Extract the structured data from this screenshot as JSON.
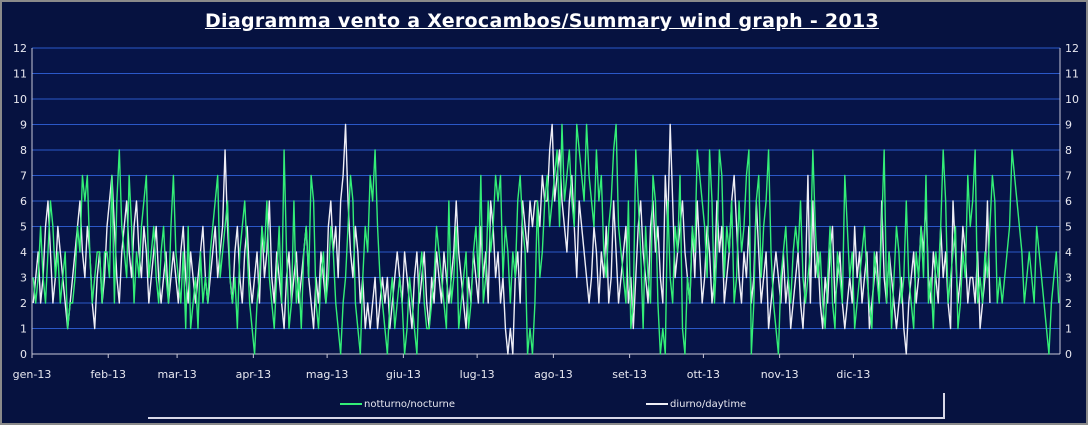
{
  "chart_data": {
    "type": "line",
    "title": "Diagramma vento a Xerocambos/Summary wind graph - 2013",
    "xlabel": "",
    "ylabel": "",
    "ylim": [
      0,
      12
    ],
    "yticks": [
      0,
      1,
      2,
      3,
      4,
      5,
      6,
      7,
      8,
      9,
      10,
      11,
      12
    ],
    "months": [
      "gen-13",
      "feb-13",
      "mar-13",
      "apr-13",
      "mag-13",
      "giu-13",
      "lug-13",
      "ago-13",
      "set-13",
      "ott-13",
      "nov-13",
      "dic-13"
    ],
    "x": "days of 2013 (day 1 = 1 January)",
    "grid": true,
    "legend_position": "bottom",
    "series": [
      {
        "name": "notturno/nocturne",
        "color": "#33ee77",
        "values": [
          3,
          2,
          3,
          5,
          3,
          2,
          4,
          6,
          5,
          3,
          4,
          2,
          3,
          4,
          1,
          2,
          2,
          3,
          5,
          4,
          7,
          6,
          7,
          4,
          2,
          3,
          4,
          4,
          2,
          4,
          4,
          3,
          7,
          2,
          6,
          8,
          5,
          4,
          3,
          7,
          5,
          2,
          4,
          3,
          5,
          6,
          7,
          3,
          4,
          5,
          3,
          2,
          4,
          5,
          3,
          2,
          5,
          7,
          4,
          3,
          2,
          4,
          1,
          5,
          1,
          2,
          3,
          1,
          4,
          2,
          3,
          2,
          4,
          5,
          6,
          7,
          3,
          4,
          5,
          6,
          3,
          2,
          3,
          1,
          4,
          5,
          6,
          4,
          2,
          1,
          0,
          2,
          3,
          5,
          4,
          6,
          3,
          2,
          1,
          3,
          5,
          2,
          8,
          4,
          1,
          2,
          6,
          2,
          3,
          1,
          4,
          5,
          3,
          7,
          6,
          2,
          1,
          3,
          4,
          2,
          3,
          5,
          4,
          2,
          1,
          0,
          2,
          3,
          5,
          7,
          6,
          2,
          1,
          0,
          3,
          5,
          4,
          7,
          6,
          8,
          5,
          3,
          2,
          1,
          0,
          2,
          3,
          1,
          2,
          3,
          2,
          0,
          1,
          3,
          2,
          1,
          0,
          3,
          4,
          2,
          1,
          1,
          2,
          3,
          5,
          4,
          3,
          2,
          1,
          6,
          2,
          3,
          5,
          1,
          2,
          3,
          4,
          1,
          2,
          4,
          5,
          3,
          7,
          2,
          3,
          6,
          4,
          5,
          7,
          6,
          7,
          3,
          5,
          4,
          2,
          4,
          3,
          6,
          7,
          5,
          4,
          0,
          1,
          0,
          2,
          6,
          3,
          4,
          6,
          7,
          5,
          6,
          7,
          8,
          5,
          9,
          6,
          7,
          8,
          6,
          5,
          9,
          8,
          7,
          6,
          9,
          7,
          6,
          5,
          8,
          6,
          7,
          4,
          3,
          5,
          6,
          8,
          9,
          5,
          4,
          3,
          2,
          6,
          1,
          2,
          8,
          6,
          4,
          1,
          5,
          3,
          2,
          7,
          6,
          2,
          0,
          1,
          0,
          6,
          3,
          2,
          5,
          4,
          7,
          1,
          0,
          3,
          2,
          5,
          4,
          8,
          7,
          6,
          5,
          3,
          8,
          6,
          2,
          4,
          8,
          7,
          3,
          5,
          4,
          6,
          2,
          3,
          6,
          4,
          5,
          7,
          8,
          0,
          2,
          6,
          7,
          3,
          5,
          6,
          8,
          4,
          2,
          1,
          0,
          3,
          4,
          5,
          3,
          2,
          4,
          5,
          4,
          6,
          3,
          2,
          3,
          4,
          8,
          5,
          3,
          4,
          2,
          1,
          3,
          5,
          2,
          1,
          4,
          3,
          2,
          7,
          5,
          3,
          4,
          1,
          2,
          3,
          4,
          5,
          3,
          2,
          1,
          4,
          3,
          2,
          5,
          8,
          2,
          4,
          1,
          3,
          5,
          4,
          2,
          3,
          6,
          3,
          2,
          1,
          4,
          3,
          5,
          3,
          7,
          2,
          3,
          1,
          4,
          3,
          5,
          8,
          6,
          2,
          3,
          4,
          5,
          1,
          2,
          4,
          3,
          7,
          5,
          6,
          8,
          2,
          3,
          2,
          4,
          3,
          5,
          7,
          6,
          2,
          3,
          2,
          3,
          4,
          5,
          8,
          7,
          6,
          5,
          4,
          2,
          3,
          4,
          3,
          2,
          5,
          4,
          3,
          2,
          1,
          0,
          2,
          3,
          4,
          2
        ]
      },
      {
        "name": "diurno/daytime",
        "color": "#eeeef6",
        "values": [
          2,
          3,
          4,
          2,
          3,
          5,
          6,
          4,
          2,
          3,
          5,
          4,
          3,
          2,
          1,
          2,
          3,
          4,
          5,
          6,
          4,
          3,
          5,
          4,
          2,
          1,
          3,
          4,
          2,
          3,
          5,
          6,
          7,
          5,
          3,
          2,
          4,
          5,
          6,
          4,
          3,
          5,
          6,
          4,
          3,
          5,
          4,
          2,
          3,
          4,
          5,
          3,
          2,
          3,
          4,
          2,
          3,
          4,
          3,
          2,
          4,
          5,
          3,
          2,
          4,
          3,
          2,
          3,
          4,
          5,
          3,
          2,
          3,
          4,
          5,
          3,
          4,
          5,
          8,
          5,
          3,
          2,
          4,
          5,
          3,
          2,
          4,
          5,
          3,
          2,
          3,
          4,
          2,
          5,
          3,
          4,
          6,
          3,
          2,
          4,
          3,
          2,
          1,
          3,
          4,
          2,
          3,
          4,
          2,
          3,
          4,
          5,
          3,
          2,
          1,
          3,
          2,
          4,
          3,
          2,
          5,
          6,
          4,
          5,
          3,
          6,
          7,
          9,
          6,
          4,
          3,
          5,
          4,
          2,
          3,
          1,
          2,
          1,
          2,
          3,
          1,
          2,
          3,
          2,
          3,
          1,
          2,
          3,
          4,
          3,
          2,
          4,
          3,
          2,
          1,
          3,
          4,
          2,
          3,
          4,
          2,
          1,
          3,
          2,
          4,
          3,
          2,
          4,
          3,
          2,
          3,
          4,
          6,
          4,
          3,
          2,
          1,
          3,
          2,
          4,
          3,
          2,
          5,
          3,
          4,
          2,
          6,
          5,
          3,
          4,
          2,
          3,
          1,
          0,
          1,
          0,
          3,
          4,
          2,
          6,
          5,
          4,
          6,
          5,
          6,
          6,
          5,
          7,
          6,
          6,
          8,
          9,
          6,
          7,
          8,
          6,
          5,
          4,
          6,
          7,
          5,
          3,
          6,
          5,
          4,
          3,
          2,
          3,
          5,
          4,
          2,
          4,
          3,
          5,
          2,
          3,
          6,
          4,
          2,
          3,
          4,
          5,
          2,
          3,
          1,
          3,
          5,
          6,
          4,
          3,
          2,
          5,
          6,
          4,
          5,
          3,
          2,
          7,
          5,
          9,
          6,
          3,
          4,
          5,
          6,
          4,
          3,
          2,
          5,
          3,
          6,
          4,
          2,
          3,
          5,
          4,
          2,
          3,
          6,
          4,
          5,
          2,
          3,
          4,
          6,
          7,
          5,
          3,
          2,
          4,
          3,
          5,
          2,
          3,
          6,
          4,
          2,
          3,
          4,
          1,
          2,
          3,
          4,
          3,
          2,
          4,
          2,
          3,
          1,
          2,
          3,
          4,
          2,
          1,
          3,
          7,
          2,
          6,
          3,
          4,
          2,
          1,
          3,
          2,
          4,
          5,
          2,
          3,
          4,
          2,
          1,
          2,
          3,
          2,
          5,
          3,
          4,
          2,
          3,
          4,
          1,
          2,
          3,
          4,
          2,
          6,
          3,
          2,
          4,
          3,
          2,
          1,
          2,
          3,
          1,
          0,
          2,
          3,
          4,
          2,
          3,
          5,
          4,
          6,
          3,
          2,
          4,
          3,
          2,
          5,
          3,
          4,
          2,
          1,
          6,
          4,
          2,
          3,
          5,
          4,
          2,
          3,
          3,
          2,
          4,
          1,
          2,
          3,
          6,
          2
        ]
      }
    ]
  }
}
